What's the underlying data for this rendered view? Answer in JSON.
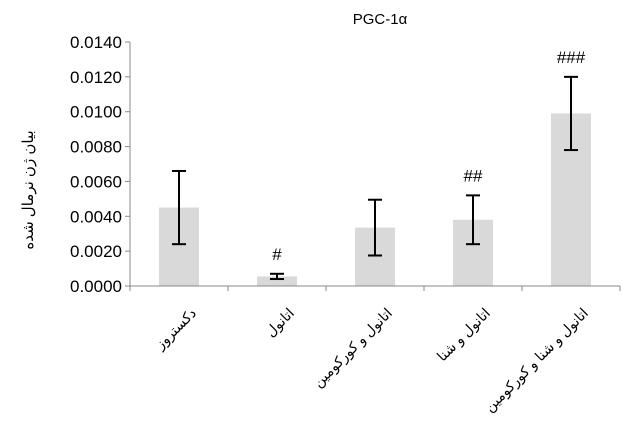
{
  "chart_data": {
    "type": "bar",
    "title": "PGC-1α",
    "xlabel": "",
    "ylabel": "بیان ژن نرمال شده",
    "ylim": [
      0,
      0.014
    ],
    "yticks": [
      "0.0000",
      "0.0020",
      "0.0040",
      "0.0060",
      "0.0080",
      "0.0100",
      "0.0120",
      "0.0140"
    ],
    "categories": [
      "دکستروز",
      "اتانول",
      "اتانول و کورکومین",
      "اتانول و شنا",
      "اتانول و شنا و کورکومین"
    ],
    "values": [
      0.0045,
      0.00055,
      0.00335,
      0.0038,
      0.0099
    ],
    "error": [
      0.0021,
      0.00015,
      0.0016,
      0.0014,
      0.0021
    ],
    "annotations": [
      "",
      "#",
      "",
      "##",
      "###"
    ],
    "grid": false,
    "bar_color": "#d9d9d9",
    "legend": "none"
  }
}
